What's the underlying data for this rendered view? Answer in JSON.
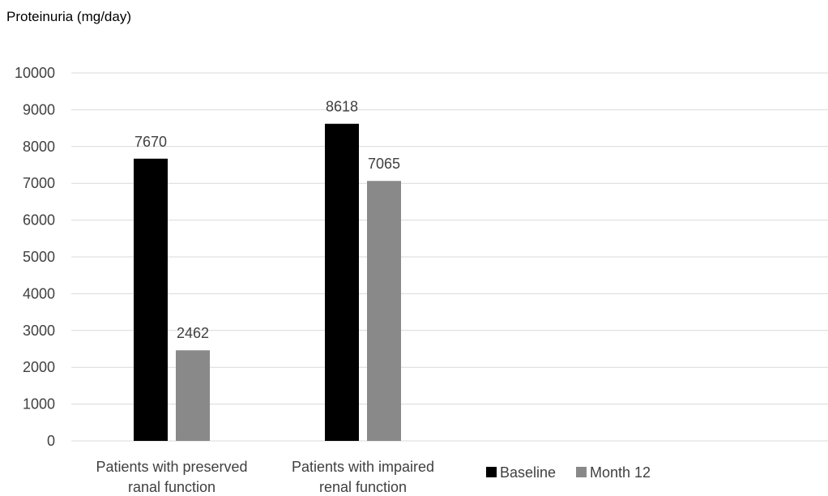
{
  "chart_data": {
    "type": "bar",
    "ylabel": "Proteinuria (mg/day)",
    "xlabel": "",
    "categories": [
      [
        "Patients with preserved",
        "ranal function"
      ],
      [
        "Patients with impaired",
        "renal function"
      ]
    ],
    "series": [
      {
        "name": "Baseline",
        "color": "#000000",
        "values": [
          7670,
          8618
        ]
      },
      {
        "name": "Month 12",
        "color": "#898989",
        "values": [
          2462,
          7065
        ]
      }
    ],
    "ylim": [
      0,
      10000
    ],
    "yticks": [
      0,
      1000,
      2000,
      3000,
      4000,
      5000,
      6000,
      7000,
      8000,
      9000,
      10000
    ],
    "grid": true,
    "legend_position": "bottom-right",
    "data_labels": true
  }
}
